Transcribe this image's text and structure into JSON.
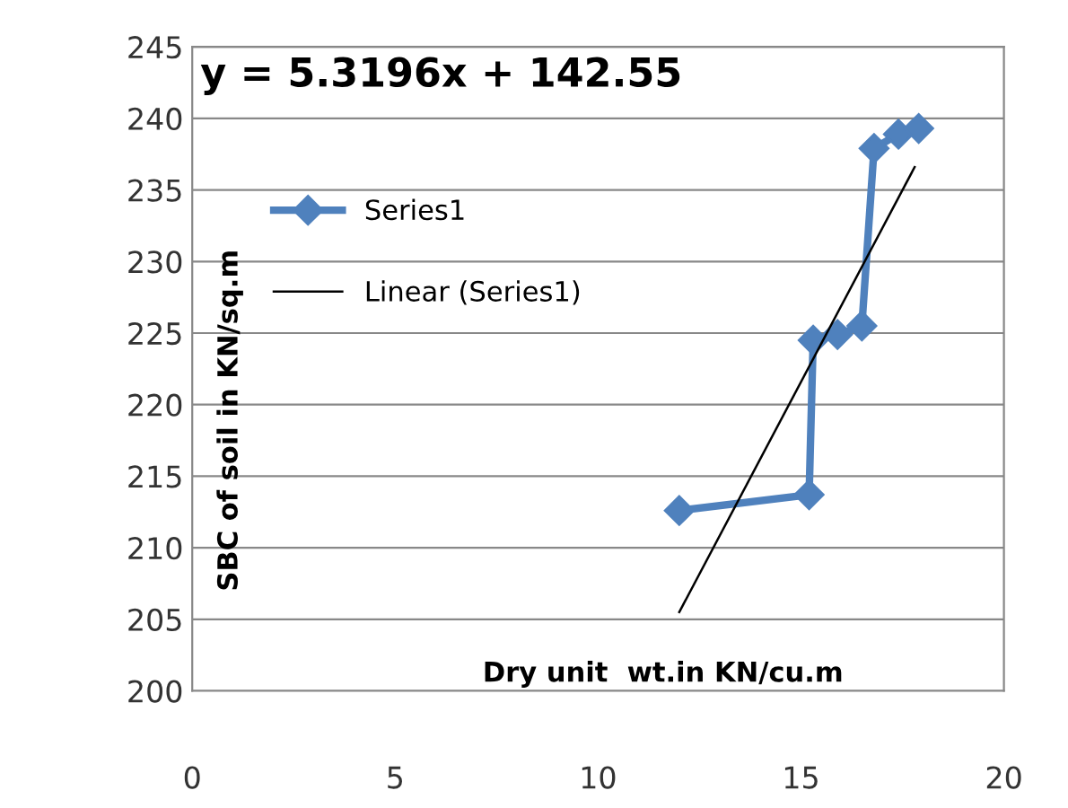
{
  "chart_data": {
    "type": "line",
    "xlabel": "Dry unit  wt.in KN/cu.m",
    "ylabel": "SBC of soil in KN/sq.m",
    "annotations": [
      "y = 5.3196x + 142.55"
    ],
    "series": [
      {
        "name": "Series1",
        "color": "#4f81bd",
        "marker": "diamond",
        "x": [
          12.0,
          15.2,
          15.3,
          15.9,
          16.5,
          16.8,
          17.4,
          17.9
        ],
        "values": [
          212.6,
          213.7,
          224.5,
          224.9,
          225.5,
          237.9,
          238.9,
          239.3
        ]
      },
      {
        "name": "Linear (Series1)",
        "color": "#000000",
        "marker": "none",
        "x": [
          12.0,
          17.8
        ],
        "values": [
          205.5,
          236.6
        ]
      }
    ],
    "xlim": [
      0,
      20
    ],
    "xticks": [
      0,
      5,
      10,
      15,
      20
    ],
    "ylim": [
      200,
      245
    ],
    "yticks": [
      200,
      205,
      210,
      215,
      220,
      225,
      230,
      235,
      240,
      245
    ],
    "grid": "y",
    "legend": "left"
  }
}
